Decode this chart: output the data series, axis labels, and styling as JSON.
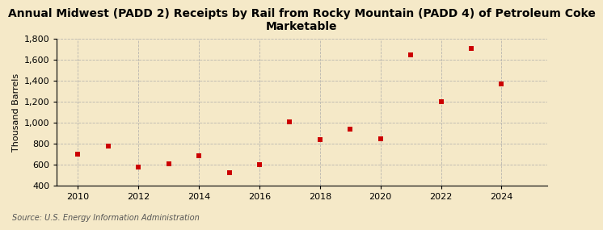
{
  "title": "Annual Midwest (PADD 2) Receipts by Rail from Rocky Mountain (PADD 4) of Petroleum Coke\nMarketable",
  "ylabel": "Thousand Barrels",
  "source": "Source: U.S. Energy Information Administration",
  "background_color": "#f5e9c8",
  "years": [
    2010,
    2011,
    2012,
    2013,
    2014,
    2015,
    2016,
    2017,
    2018,
    2019,
    2020,
    2021,
    2022,
    2023,
    2024
  ],
  "values": [
    700,
    775,
    575,
    610,
    680,
    525,
    600,
    1010,
    835,
    940,
    845,
    1645,
    1200,
    1705,
    1365
  ],
  "marker_color": "#cc0000",
  "marker": "s",
  "marker_size": 5,
  "ylim": [
    400,
    1800
  ],
  "yticks": [
    400,
    600,
    800,
    1000,
    1200,
    1400,
    1600,
    1800
  ],
  "xlim": [
    2009.3,
    2025.5
  ],
  "xticks": [
    2010,
    2012,
    2014,
    2016,
    2018,
    2020,
    2022,
    2024
  ],
  "grid_color": "#aaaaaa",
  "grid_style": "--",
  "grid_alpha": 0.8,
  "title_fontsize": 10,
  "tick_fontsize": 8,
  "ylabel_fontsize": 8,
  "source_fontsize": 7
}
